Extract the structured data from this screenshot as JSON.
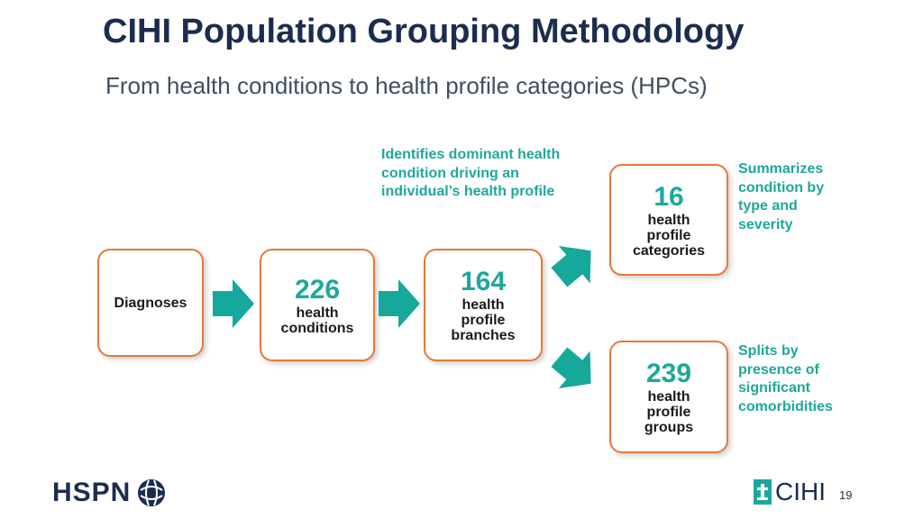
{
  "slide": {
    "title": "CIHI Population Grouping Methodology",
    "subtitle": "From health conditions to health profile categories (HPCs)",
    "page_number": "19"
  },
  "flow": {
    "diagnoses": {
      "label": "Diagnoses"
    },
    "conditions": {
      "number": "226",
      "label_line1": "health",
      "label_line2": "conditions"
    },
    "branches": {
      "number": "164",
      "label_line1": "health",
      "label_line2": "profile",
      "label_line3": "branches"
    },
    "categories": {
      "number": "16",
      "label_line1": "health",
      "label_line2": "profile",
      "label_line3": "categories"
    },
    "groups": {
      "number": "239",
      "label_line1": "health",
      "label_line2": "profile",
      "label_line3": "groups"
    }
  },
  "notes": {
    "identifies": [
      "Identifies dominant health",
      "condition driving an",
      "individual’s health profile"
    ],
    "summarizes": [
      "Summarizes",
      "condition by",
      "type and",
      "severity"
    ],
    "splits": [
      "Splits by",
      "presence of",
      "significant",
      "comorbidities"
    ]
  },
  "logos": {
    "hspn": "HSPN",
    "cihi": "CIHI"
  },
  "colors": {
    "title": "#1b2d4f",
    "accent_teal": "#1ea89a",
    "box_border": "#e8783a"
  }
}
